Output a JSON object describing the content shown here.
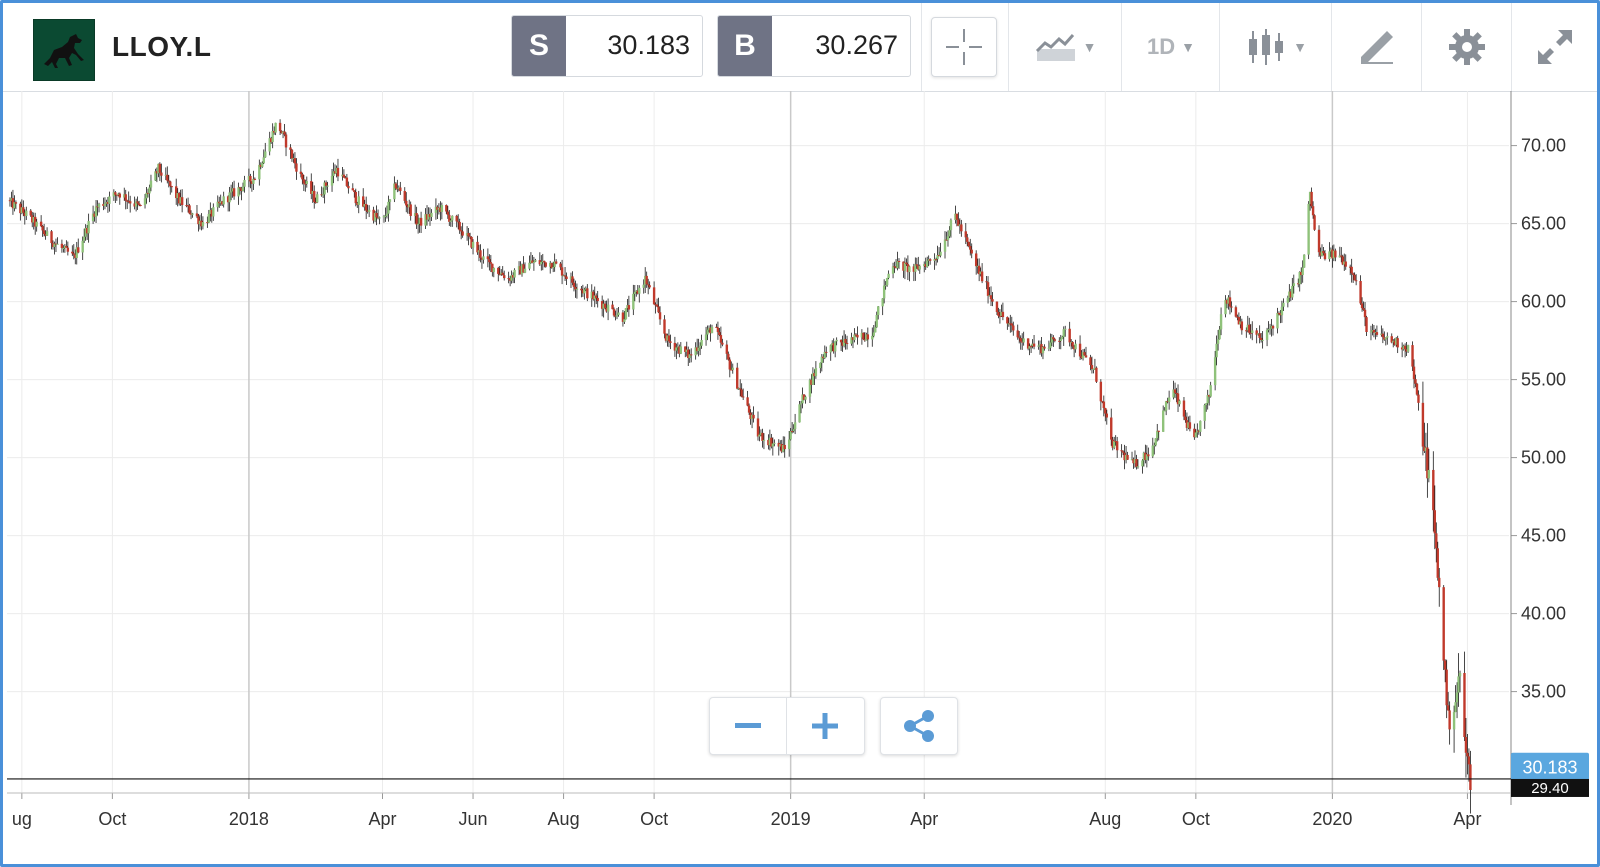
{
  "header": {
    "ticker": "LLOY.L",
    "sell_tag": "S",
    "sell_price": "30.183",
    "buy_tag": "B",
    "buy_price": "30.267",
    "timeframe": "1D",
    "tool_icons": [
      "crosshair-icon",
      "line-chart-icon",
      "candlestick-icon",
      "drawing-pen-icon",
      "gear-icon",
      "expand-icon"
    ]
  },
  "colors": {
    "up": "#8fc27a",
    "down": "#c0392b",
    "wick": "#1a1a1a",
    "accent": "#4a90d9",
    "tag_bg": "#6f7385",
    "last_price_bg": "#5aa7df"
  },
  "price_badge": {
    "last": "30.183",
    "current": "29.40"
  },
  "chart_data": {
    "type": "candlestick",
    "ylim": [
      28.5,
      73.5
    ],
    "y_ticks": [
      "70.00",
      "65.00",
      "60.00",
      "55.00",
      "50.00",
      "45.00",
      "40.00",
      "35.00"
    ],
    "x_ticks": [
      "ug",
      "Oct",
      "2018",
      "Apr",
      "Jun",
      "Aug",
      "Oct",
      "2019",
      "Apr",
      "Aug",
      "Oct",
      "2020",
      "Apr"
    ],
    "x_range": [
      "2017-07-22",
      "2020-04-29"
    ],
    "tick_dates": [
      "2017-08-01",
      "2017-10-01",
      "2018-01-01",
      "2018-04-01",
      "2018-06-01",
      "2018-08-01",
      "2018-10-01",
      "2019-01-01",
      "2019-04-01",
      "2019-08-01",
      "2019-10-01",
      "2020-01-01",
      "2020-04-01"
    ],
    "year_separators": [
      "2018-01-01",
      "2019-01-01",
      "2020-01-01"
    ],
    "horizontal_line": 29.4,
    "close_path": [
      [
        "2017-07-22",
        66.5
      ],
      [
        "2017-08-05",
        65.5
      ],
      [
        "2017-08-20",
        64.0
      ],
      [
        "2017-09-05",
        62.8
      ],
      [
        "2017-09-20",
        66.0
      ],
      [
        "2017-10-05",
        67.0
      ],
      [
        "2017-10-20",
        66.0
      ],
      [
        "2017-11-01",
        68.5
      ],
      [
        "2017-11-15",
        66.5
      ],
      [
        "2017-12-01",
        65.0
      ],
      [
        "2017-12-15",
        66.5
      ],
      [
        "2018-01-05",
        68.0
      ],
      [
        "2018-01-20",
        71.5
      ],
      [
        "2018-02-05",
        68.0
      ],
      [
        "2018-02-15",
        66.5
      ],
      [
        "2018-03-01",
        68.5
      ],
      [
        "2018-03-15",
        66.5
      ],
      [
        "2018-04-01",
        65.0
      ],
      [
        "2018-04-10",
        67.5
      ],
      [
        "2018-04-25",
        65.0
      ],
      [
        "2018-05-10",
        66.0
      ],
      [
        "2018-05-25",
        64.5
      ],
      [
        "2018-06-10",
        62.5
      ],
      [
        "2018-06-25",
        61.5
      ],
      [
        "2018-07-10",
        62.5
      ],
      [
        "2018-07-25",
        62.5
      ],
      [
        "2018-08-10",
        61.0
      ],
      [
        "2018-08-25",
        60.0
      ],
      [
        "2018-09-10",
        59.0
      ],
      [
        "2018-09-25",
        61.5
      ],
      [
        "2018-10-10",
        57.5
      ],
      [
        "2018-10-25",
        56.5
      ],
      [
        "2018-11-10",
        58.5
      ],
      [
        "2018-11-25",
        55.0
      ],
      [
        "2018-12-10",
        51.5
      ],
      [
        "2018-12-28",
        50.5
      ],
      [
        "2019-01-10",
        54.0
      ],
      [
        "2019-01-25",
        57.0
      ],
      [
        "2019-02-10",
        57.5
      ],
      [
        "2019-02-25",
        58.0
      ],
      [
        "2019-03-10",
        62.5
      ],
      [
        "2019-03-25",
        62.0
      ],
      [
        "2019-04-10",
        63.0
      ],
      [
        "2019-04-22",
        65.5
      ],
      [
        "2019-05-05",
        62.5
      ],
      [
        "2019-05-20",
        59.5
      ],
      [
        "2019-06-05",
        57.5
      ],
      [
        "2019-06-20",
        57.0
      ],
      [
        "2019-07-05",
        58.0
      ],
      [
        "2019-07-25",
        55.5
      ],
      [
        "2019-08-05",
        51.0
      ],
      [
        "2019-08-20",
        49.5
      ],
      [
        "2019-09-01",
        50.5
      ],
      [
        "2019-09-15",
        54.5
      ],
      [
        "2019-09-30",
        51.0
      ],
      [
        "2019-10-10",
        54.0
      ],
      [
        "2019-10-20",
        60.5
      ],
      [
        "2019-11-01",
        58.5
      ],
      [
        "2019-11-15",
        57.5
      ],
      [
        "2019-12-01",
        60.0
      ],
      [
        "2019-12-12",
        62.0
      ],
      [
        "2019-12-17",
        67.0
      ],
      [
        "2019-12-22",
        63.0
      ],
      [
        "2020-01-05",
        63.0
      ],
      [
        "2020-01-15",
        62.0
      ],
      [
        "2020-01-25",
        58.0
      ],
      [
        "2020-02-10",
        57.5
      ],
      [
        "2020-02-22",
        57.0
      ],
      [
        "2020-03-01",
        52.0
      ],
      [
        "2020-03-08",
        47.5
      ],
      [
        "2020-03-15",
        39.0
      ],
      [
        "2020-03-19",
        33.0
      ],
      [
        "2020-03-24",
        34.5
      ],
      [
        "2020-03-27",
        36.0
      ],
      [
        "2020-03-31",
        31.0
      ],
      [
        "2020-04-03",
        29.4
      ]
    ]
  }
}
